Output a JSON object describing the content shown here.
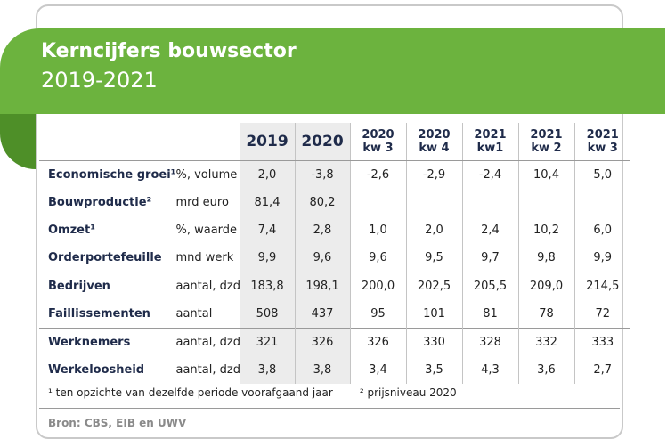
{
  "header": {
    "title": "Kerncijfers bouwsector",
    "subtitle": "2019-2021"
  },
  "table": {
    "columns": [
      {
        "line1": "2019",
        "line2": ""
      },
      {
        "line1": "2020",
        "line2": ""
      },
      {
        "line1": "2020",
        "line2": "kw 3"
      },
      {
        "line1": "2020",
        "line2": "kw 4"
      },
      {
        "line1": "2021",
        "line2": "kw1"
      },
      {
        "line1": "2021",
        "line2": "kw 2"
      },
      {
        "line1": "2021",
        "line2": "kw 3"
      }
    ],
    "rows": [
      {
        "indicator": "Economische groei¹",
        "unit": "%, volume",
        "values": [
          "2,0",
          "-3,8",
          "-2,6",
          "-2,9",
          "-2,4",
          "10,4",
          "5,0"
        ]
      },
      {
        "indicator": "Bouwproductie²",
        "unit": "mrd euro",
        "values": [
          "81,4",
          "80,2",
          "",
          "",
          "",
          "",
          ""
        ]
      },
      {
        "indicator": "Omzet¹",
        "unit": "%, waarde",
        "values": [
          "7,4",
          "2,8",
          "1,0",
          "2,0",
          "2,4",
          "10,2",
          "6,0"
        ]
      },
      {
        "indicator": "Orderportefeuille",
        "unit": "mnd werk",
        "values": [
          "9,9",
          "9,6",
          "9,6",
          "9,5",
          "9,7",
          "9,8",
          "9,9"
        ]
      },
      {
        "indicator": "Bedrijven",
        "unit": "aantal, dzd",
        "values": [
          "183,8",
          "198,1",
          "200,0",
          "202,5",
          "205,5",
          "209,0",
          "214,5"
        ]
      },
      {
        "indicator": "Faillissementen",
        "unit": "aantal",
        "values": [
          "508",
          "437",
          "95",
          "101",
          "81",
          "78",
          "72"
        ]
      },
      {
        "indicator": "Werknemers",
        "unit": "aantal, dzd",
        "values": [
          "321",
          "326",
          "326",
          "330",
          "328",
          "332",
          "333"
        ]
      },
      {
        "indicator": "Werkeloosheid",
        "unit": "aantal, dzd",
        "values": [
          "3,8",
          "3,8",
          "3,4",
          "3,5",
          "4,3",
          "3,6",
          "2,7"
        ]
      }
    ]
  },
  "footnotes": {
    "note1": "¹ ten opzichte van dezelfde periode voorafgaand jaar",
    "note2": "² prijsniveau 2020"
  },
  "source": "Bron: CBS, EIB en UWV",
  "colors": {
    "banner_green": "#6cb33e",
    "curl_green": "#4e8f28",
    "header_text": "#1f2b4a",
    "year_shade": "#ececec"
  }
}
